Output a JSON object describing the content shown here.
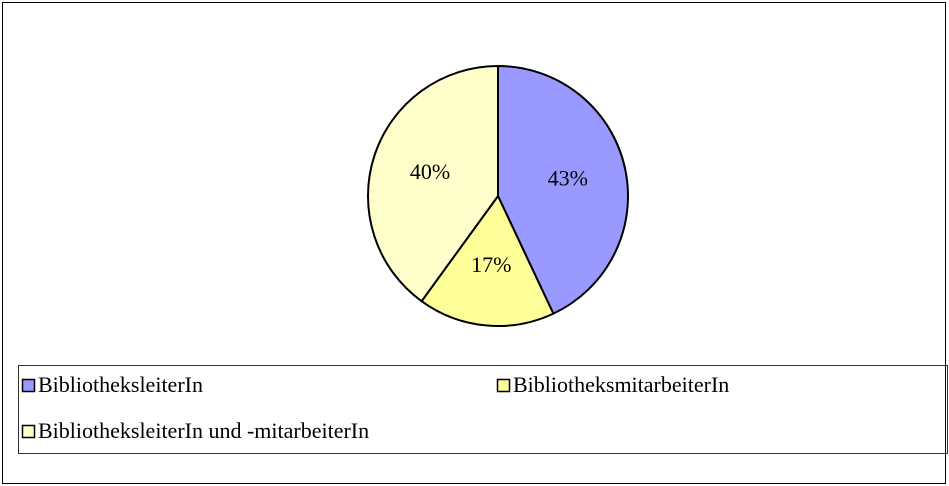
{
  "chart_data": {
    "type": "pie",
    "categories": [
      "BibliotheksleiterIn",
      "BibliotheksmitarbeiterIn",
      "BibliotheksleiterIn und -mitarbeiterIn"
    ],
    "values": [
      43,
      17,
      40
    ],
    "value_labels": [
      "43%",
      "17%",
      "40%"
    ],
    "colors": [
      "#9999ff",
      "#ffff99",
      "#ffffcc"
    ],
    "legend": "bottom"
  }
}
